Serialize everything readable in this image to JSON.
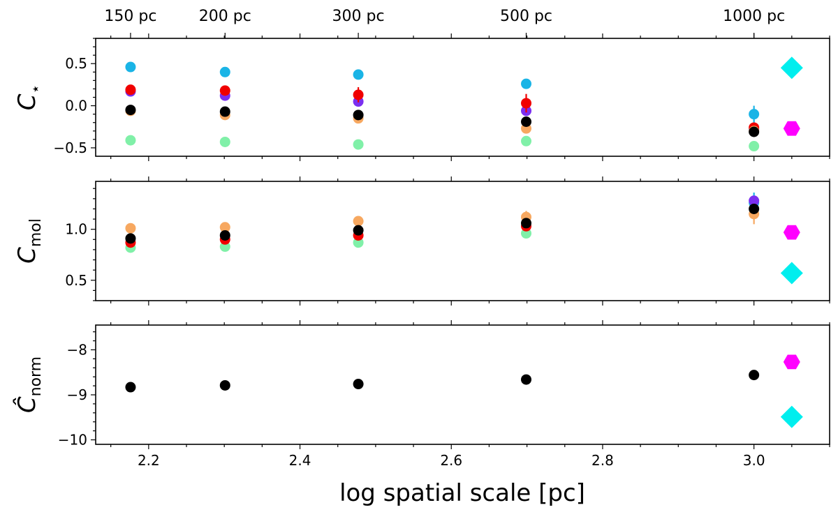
{
  "chart_data": {
    "type": "scatter",
    "x_axis": {
      "label": "log spatial scale [pc]",
      "lim": [
        2.13,
        3.1
      ],
      "ticks": [
        2.2,
        2.4,
        2.6,
        2.8,
        3.0
      ],
      "tick_labels": [
        "2.2",
        "2.4",
        "2.6",
        "2.8",
        "3.0"
      ],
      "minor_step": 0.05
    },
    "top_axis": {
      "x": [
        2.1761,
        2.301,
        2.4771,
        2.699,
        3.0
      ],
      "labels": [
        "150 pc",
        "200 pc",
        "300 pc",
        "500 pc",
        "1000 pc"
      ]
    },
    "panels": [
      {
        "id": "cstar",
        "ylabel": "C",
        "ylabel_sub": "⋆",
        "ylim": [
          -0.6,
          0.8
        ],
        "yticks": [
          -0.5,
          0.0,
          0.5
        ],
        "ytick_labels": [
          "−0.5",
          "0.0",
          "0.5"
        ],
        "series": [
          {
            "name": "sky blue",
            "color": "#1ab4e6",
            "x": [
              2.1761,
              2.301,
              2.4771,
              2.699,
              3.0
            ],
            "y": [
              0.46,
              0.4,
              0.37,
              0.26,
              -0.1
            ],
            "err": [
              0,
              0,
              0,
              0,
              0.1
            ]
          },
          {
            "name": "purple",
            "color": "#7b2ff0",
            "x": [
              2.1761,
              2.301,
              2.4771,
              2.699,
              3.0
            ],
            "y": [
              0.17,
              0.12,
              0.05,
              -0.06,
              -0.28
            ],
            "err": [
              0,
              0,
              0,
              0,
              0
            ]
          },
          {
            "name": "red",
            "color": "#f00000",
            "x": [
              2.1761,
              2.301,
              2.4771,
              2.699,
              3.0
            ],
            "y": [
              0.19,
              0.18,
              0.13,
              0.03,
              -0.26
            ],
            "err": [
              0.03,
              0.04,
              0.09,
              0.11,
              0.05
            ]
          },
          {
            "name": "orange",
            "color": "#f7a860",
            "x": [
              2.1761,
              2.301,
              2.4771,
              2.699,
              3.0
            ],
            "y": [
              -0.06,
              -0.11,
              -0.15,
              -0.27,
              -0.3
            ],
            "err": [
              0,
              0,
              0,
              0,
              0
            ]
          },
          {
            "name": "light green",
            "color": "#80f0a8",
            "x": [
              2.1761,
              2.301,
              2.4771,
              2.699,
              3.0
            ],
            "y": [
              -0.41,
              -0.43,
              -0.46,
              -0.42,
              -0.48
            ],
            "err": [
              0,
              0,
              0,
              0,
              0
            ]
          },
          {
            "name": "black",
            "color": "#000000",
            "x": [
              2.1761,
              2.301,
              2.4771,
              2.699,
              3.0
            ],
            "y": [
              -0.05,
              -0.07,
              -0.11,
              -0.19,
              -0.31
            ],
            "err": [
              0,
              0,
              0,
              0,
              0.06
            ]
          }
        ],
        "markers": [
          {
            "name": "cyan diamond",
            "shape": "diamond",
            "color": "#00eeee",
            "x": 3.05,
            "y": 0.45
          },
          {
            "name": "magenta hexagon",
            "shape": "hexagon",
            "color": "#ff00ff",
            "x": 3.05,
            "y": -0.27
          }
        ]
      },
      {
        "id": "cmol",
        "ylabel": "C",
        "ylabel_sub": "mol",
        "ylim": [
          0.3,
          1.47
        ],
        "yticks": [
          0.5,
          1.0
        ],
        "ytick_labels": [
          "0.5",
          "1.0"
        ],
        "series": [
          {
            "name": "sky blue",
            "color": "#1ab4e6",
            "x": [
              3.0
            ],
            "y": [
              1.26
            ],
            "err": [
              0.1
            ]
          },
          {
            "name": "purple",
            "color": "#7b2ff0",
            "x": [
              3.0
            ],
            "y": [
              1.28
            ],
            "err": [
              0
            ]
          },
          {
            "name": "orange",
            "color": "#f7a860",
            "x": [
              2.1761,
              2.301,
              2.4771,
              2.699,
              3.0
            ],
            "y": [
              1.01,
              1.02,
              1.08,
              1.12,
              1.15
            ],
            "err": [
              0,
              0,
              0,
              0.06,
              0.1
            ]
          },
          {
            "name": "light green",
            "color": "#80f0a8",
            "x": [
              2.1761,
              2.301,
              2.4771,
              2.699
            ],
            "y": [
              0.82,
              0.83,
              0.87,
              0.96
            ],
            "err": [
              0,
              0,
              0,
              0
            ]
          },
          {
            "name": "red",
            "color": "#f00000",
            "x": [
              2.1761,
              2.301,
              2.4771,
              2.699
            ],
            "y": [
              0.87,
              0.9,
              0.94,
              1.03
            ],
            "err": [
              0,
              0,
              0,
              0
            ]
          },
          {
            "name": "black",
            "color": "#000000",
            "x": [
              2.1761,
              2.301,
              2.4771,
              2.699,
              3.0
            ],
            "y": [
              0.91,
              0.94,
              0.99,
              1.06,
              1.2
            ],
            "err": [
              0,
              0,
              0,
              0,
              0
            ]
          }
        ],
        "markers": [
          {
            "name": "magenta hexagon",
            "shape": "hexagon",
            "color": "#ff00ff",
            "x": 3.05,
            "y": 0.97
          },
          {
            "name": "cyan diamond",
            "shape": "diamond",
            "color": "#00eeee",
            "x": 3.05,
            "y": 0.57
          }
        ]
      },
      {
        "id": "cnorm",
        "ylabel": "Ĉ",
        "ylabel_sub": "norm",
        "ylim": [
          -10.1,
          -7.45
        ],
        "yticks": [
          -10,
          -9,
          -8
        ],
        "ytick_labels": [
          "−10",
          "−9",
          "−8"
        ],
        "series": [
          {
            "name": "black",
            "color": "#000000",
            "x": [
              2.1761,
              2.301,
              2.4771,
              2.699,
              3.0
            ],
            "y": [
              -8.83,
              -8.79,
              -8.76,
              -8.66,
              -8.56
            ],
            "err": [
              0,
              0,
              0,
              0,
              0
            ]
          }
        ],
        "markers": [
          {
            "name": "magenta hexagon",
            "shape": "hexagon",
            "color": "#ff00ff",
            "x": 3.05,
            "y": -8.27
          },
          {
            "name": "cyan diamond",
            "shape": "diamond",
            "color": "#00eeee",
            "x": 3.05,
            "y": -9.49
          }
        ]
      }
    ]
  }
}
